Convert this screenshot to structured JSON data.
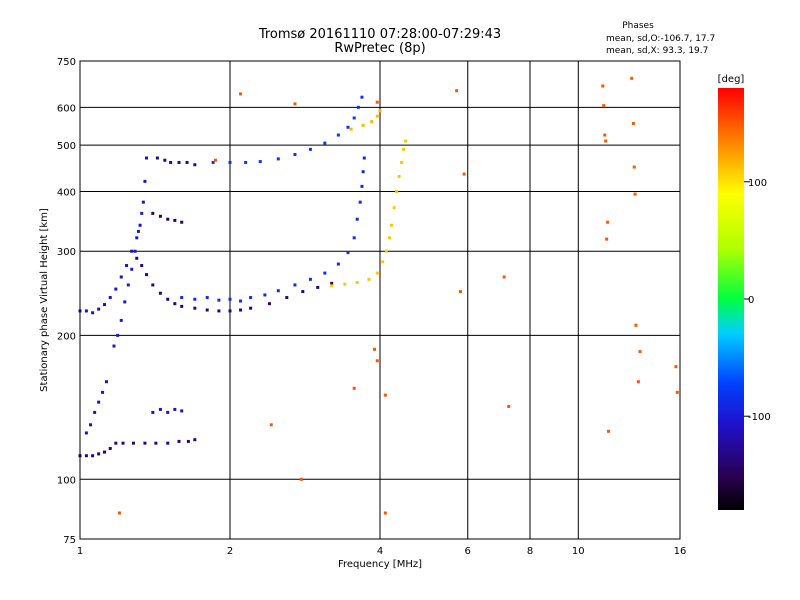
{
  "chart_data": {
    "type": "scatter",
    "title": "Tromsø 20161110 07:28:00-07:29:43",
    "subtitle": "RwPretec (8p)",
    "xlabel": "Frequency [MHz]",
    "ylabel": "Stationary phase Virtual Height [km]",
    "x_scale": "log",
    "y_scale": "log",
    "xlim": [
      1,
      16
    ],
    "ylim": [
      75,
      750
    ],
    "x_ticks": [
      "1",
      "2",
      "4",
      "6",
      "8",
      "10",
      "16"
    ],
    "y_ticks": [
      "750",
      "600",
      "500",
      "400",
      "300",
      "200",
      "100",
      "75"
    ],
    "grid": true,
    "phases_legend": {
      "heading": "Phases",
      "o_line": "mean, sd,O:-106.7, 17.7",
      "x_line": "mean, sd,X:  93.3, 19.7"
    },
    "colorbar": {
      "label": "[deg]",
      "ticks": [
        "100",
        "0",
        "-100"
      ],
      "range": [
        -180,
        180
      ]
    },
    "traces": [
      {
        "name": "",
        "phase": -140,
        "points": [
          [
            1.0,
            112
          ],
          [
            1.03,
            112
          ],
          [
            1.06,
            112
          ],
          [
            1.09,
            113
          ],
          [
            1.12,
            114
          ],
          [
            1.15,
            116
          ],
          [
            1.18,
            119
          ],
          [
            1.22,
            119
          ],
          [
            1.28,
            119
          ],
          [
            1.35,
            119
          ],
          [
            1.42,
            119
          ],
          [
            1.5,
            119
          ],
          [
            1.58,
            120
          ],
          [
            1.65,
            120
          ],
          [
            1.7,
            121
          ]
        ]
      },
      {
        "name": "",
        "phase": -120,
        "points": [
          [
            1.0,
            225
          ],
          [
            1.03,
            225
          ],
          [
            1.06,
            223
          ],
          [
            1.09,
            227
          ],
          [
            1.12,
            232
          ],
          [
            1.15,
            240
          ],
          [
            1.18,
            250
          ],
          [
            1.21,
            265
          ],
          [
            1.24,
            280
          ],
          [
            1.27,
            300
          ],
          [
            1.3,
            320
          ],
          [
            1.32,
            340
          ],
          [
            1.34,
            380
          ],
          [
            1.35,
            420
          ],
          [
            1.36,
            470
          ]
        ]
      },
      {
        "name": "",
        "phase": -115,
        "points": [
          [
            1.17,
            190
          ],
          [
            1.19,
            200
          ],
          [
            1.21,
            215
          ],
          [
            1.23,
            235
          ],
          [
            1.25,
            255
          ],
          [
            1.27,
            275
          ],
          [
            1.29,
            300
          ],
          [
            1.31,
            330
          ],
          [
            1.33,
            360
          ]
        ]
      },
      {
        "name": "",
        "phase": -140,
        "points": [
          [
            1.3,
            290
          ],
          [
            1.33,
            280
          ],
          [
            1.36,
            268
          ],
          [
            1.4,
            255
          ],
          [
            1.45,
            245
          ],
          [
            1.5,
            238
          ],
          [
            1.55,
            233
          ],
          [
            1.6,
            230
          ],
          [
            1.7,
            228
          ],
          [
            1.8,
            226
          ],
          [
            1.9,
            225
          ],
          [
            2.0,
            225
          ],
          [
            2.1,
            226
          ],
          [
            2.2,
            228
          ],
          [
            2.4,
            233
          ],
          [
            2.6,
            240
          ],
          [
            2.8,
            247
          ],
          [
            3.0,
            252
          ],
          [
            3.2,
            257
          ]
        ]
      },
      {
        "name": "",
        "phase": -105,
        "points": [
          [
            1.6,
            240
          ],
          [
            1.7,
            238
          ],
          [
            1.8,
            240
          ],
          [
            1.9,
            237
          ],
          [
            2.0,
            238
          ],
          [
            2.1,
            236
          ],
          [
            2.2,
            240
          ],
          [
            2.35,
            243
          ],
          [
            2.5,
            248
          ],
          [
            2.7,
            255
          ],
          [
            2.9,
            262
          ],
          [
            3.1,
            270
          ],
          [
            3.3,
            282
          ],
          [
            3.45,
            298
          ],
          [
            3.55,
            320
          ],
          [
            3.6,
            350
          ],
          [
            3.65,
            380
          ],
          [
            3.68,
            410
          ],
          [
            3.7,
            440
          ],
          [
            3.72,
            470
          ]
        ]
      },
      {
        "name": "",
        "phase": 110,
        "points": [
          [
            3.2,
            254
          ],
          [
            3.4,
            256
          ],
          [
            3.6,
            258
          ],
          [
            3.8,
            262
          ],
          [
            3.95,
            270
          ],
          [
            4.05,
            285
          ],
          [
            4.12,
            300
          ],
          [
            4.18,
            320
          ],
          [
            4.22,
            340
          ],
          [
            4.27,
            370
          ],
          [
            4.32,
            400
          ],
          [
            4.37,
            430
          ],
          [
            4.42,
            460
          ],
          [
            4.46,
            490
          ],
          [
            4.5,
            510
          ]
        ]
      },
      {
        "name": "",
        "phase": -135,
        "points": [
          [
            1.43,
            470
          ],
          [
            1.48,
            465
          ],
          [
            1.52,
            460
          ],
          [
            1.58,
            460
          ],
          [
            1.64,
            460
          ],
          [
            1.7,
            455
          ]
        ]
      },
      {
        "name": "",
        "phase": -150,
        "points": [
          [
            1.4,
            360
          ],
          [
            1.45,
            355
          ],
          [
            1.5,
            350
          ],
          [
            1.55,
            348
          ],
          [
            1.6,
            345
          ]
        ]
      },
      {
        "name": "",
        "phase": -100,
        "points": [
          [
            1.85,
            460
          ],
          [
            2.0,
            460
          ],
          [
            2.15,
            460
          ],
          [
            2.3,
            462
          ],
          [
            2.5,
            468
          ],
          [
            2.7,
            478
          ],
          [
            2.9,
            490
          ],
          [
            3.1,
            505
          ],
          [
            3.3,
            525
          ],
          [
            3.45,
            545
          ],
          [
            3.55,
            570
          ],
          [
            3.62,
            600
          ],
          [
            3.68,
            630
          ]
        ]
      },
      {
        "name": "",
        "phase": 115,
        "points": [
          [
            3.5,
            540
          ],
          [
            3.7,
            550
          ],
          [
            3.85,
            560
          ],
          [
            3.95,
            575
          ],
          [
            4.0,
            590
          ]
        ]
      },
      {
        "name": "",
        "phase": -120,
        "points": [
          [
            1.03,
            125
          ],
          [
            1.05,
            130
          ],
          [
            1.07,
            138
          ],
          [
            1.09,
            145
          ],
          [
            1.11,
            152
          ],
          [
            1.13,
            160
          ]
        ]
      },
      {
        "name": "",
        "phase": -120,
        "points": [
          [
            1.4,
            138
          ],
          [
            1.45,
            140
          ],
          [
            1.5,
            138
          ],
          [
            1.55,
            140
          ],
          [
            1.6,
            139
          ]
        ]
      },
      {
        "name": "",
        "phase": 150,
        "points": [
          [
            1.2,
            85
          ],
          [
            1.87,
            465
          ],
          [
            2.1,
            640
          ],
          [
            2.42,
            130
          ],
          [
            2.7,
            610
          ],
          [
            3.95,
            615
          ],
          [
            4.1,
            150
          ],
          [
            4.1,
            85
          ],
          [
            5.7,
            650
          ],
          [
            5.8,
            247
          ],
          [
            5.9,
            435
          ],
          [
            7.1,
            265
          ],
          [
            7.25,
            142
          ],
          [
            11.2,
            665
          ],
          [
            11.25,
            605
          ],
          [
            11.3,
            525
          ],
          [
            11.35,
            510
          ],
          [
            11.4,
            318
          ],
          [
            11.45,
            345
          ],
          [
            11.5,
            126
          ],
          [
            12.8,
            690
          ],
          [
            12.9,
            555
          ],
          [
            12.95,
            450
          ],
          [
            13.0,
            395
          ],
          [
            13.05,
            210
          ],
          [
            13.3,
            185
          ],
          [
            13.2,
            160
          ],
          [
            15.7,
            172
          ],
          [
            15.8,
            152
          ],
          [
            2.78,
            100
          ],
          [
            3.9,
            187
          ],
          [
            3.95,
            177
          ],
          [
            3.55,
            155
          ]
        ]
      }
    ]
  }
}
